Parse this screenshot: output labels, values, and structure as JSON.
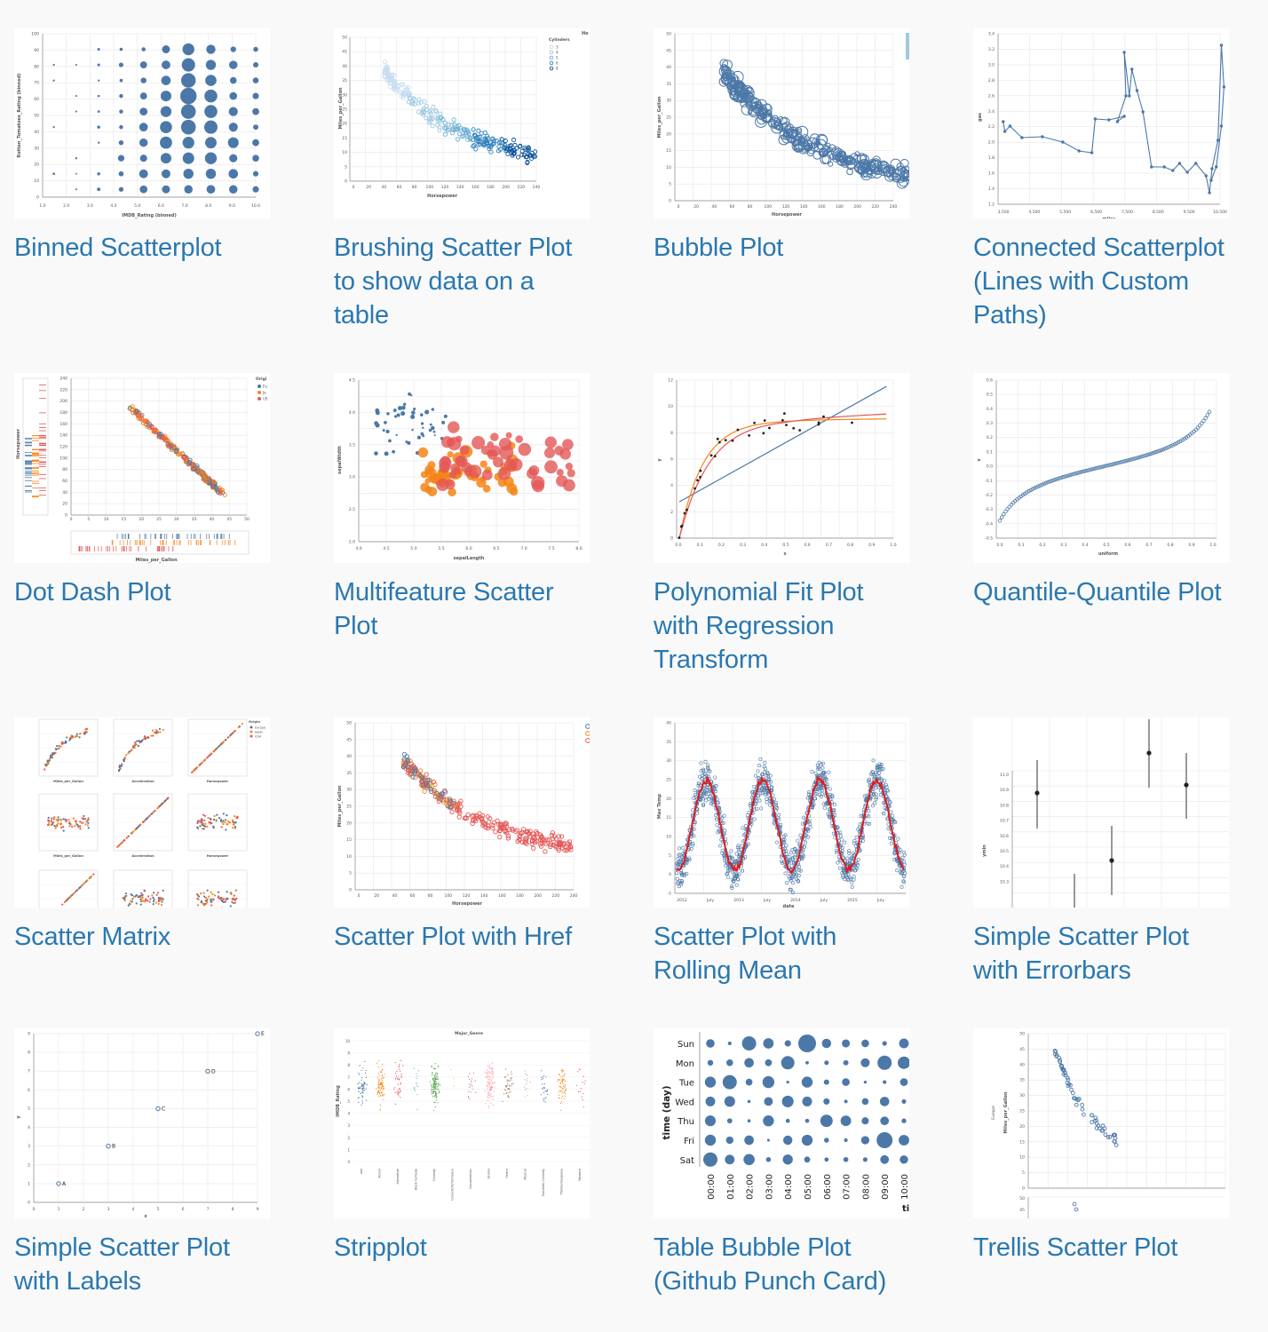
{
  "gallery": {
    "accent_color": "#2a78b0",
    "items": [
      {
        "title": "Binned Scatterplot",
        "thumbnail": "binned-scatterplot",
        "ylabel": "Rotten_Tomatoes_Rating (binned)",
        "xlabel": "IMDB_Rating (binned)"
      },
      {
        "title": "Brushing Scatter Plot to show data on a table",
        "thumbnail": "brushing-scatter",
        "ylabel": "Miles_per_Gallon",
        "xlabel": "Horsepower",
        "legend_title": "Cylinders",
        "legend_items": [
          "3",
          "4",
          "5",
          "6",
          "8"
        ],
        "corner_text": "Ho"
      },
      {
        "title": "Bubble Plot",
        "thumbnail": "bubble-plot",
        "ylabel": "Miles_per_Gallon",
        "xlabel": "Horsepower"
      },
      {
        "title": "Connected Scatterplot (Lines with Custom Paths)",
        "thumbnail": "connected-scatterplot",
        "ylabel": "gas",
        "xlabel": "miles"
      },
      {
        "title": "Dot Dash Plot",
        "thumbnail": "dot-dash-plot",
        "ylabel": "Horsepower",
        "xlabel": "Miles_per_Gallon",
        "legend_title": "Origi",
        "legend_items": [
          "Eu",
          "Ja",
          "US"
        ]
      },
      {
        "title": "Multifeature Scatter Plot",
        "thumbnail": "multifeature-scatter",
        "ylabel": "sepalWidth",
        "xlabel": "sepalLength"
      },
      {
        "title": "Polynomial Fit Plot with Regression Transform",
        "thumbnail": "polynomial-fit",
        "ylabel": "y",
        "xlabel": "x"
      },
      {
        "title": "Quantile-Quantile Plot",
        "thumbnail": "quantile-quantile",
        "ylabel": "v",
        "xlabel": "uniform"
      },
      {
        "title": "Scatter Matrix",
        "thumbnail": "scatter-matrix",
        "legend_title": "Origin",
        "legend_items": [
          "Europe",
          "Japan",
          "USA"
        ],
        "panel_labels": [
          "Miles_per_Gallon",
          "Acceleration",
          "Horsepower"
        ]
      },
      {
        "title": "Scatter Plot with Href",
        "thumbnail": "scatter-href",
        "ylabel": "Miles_per_Gallon",
        "xlabel": "Horsepower"
      },
      {
        "title": "Scatter Plot with Rolling Mean",
        "thumbnail": "rolling-mean",
        "ylabel": "Max Temp",
        "xlabel": "date",
        "xticks": [
          "2012",
          "July",
          "2013",
          "July",
          "2014",
          "July",
          "2015",
          "July"
        ]
      },
      {
        "title": "Simple Scatter Plot with Errorbars",
        "thumbnail": "errorbars",
        "ylabel": "ymin"
      },
      {
        "title": "Simple Scatter Plot with Labels",
        "thumbnail": "scatter-labels",
        "ylabel": "y",
        "xlabel": "x",
        "point_labels": [
          "A",
          "B",
          "C",
          "D",
          "E"
        ]
      },
      {
        "title": "Stripplot",
        "thumbnail": "stripplot",
        "chart_title": "Major_Genre",
        "ylabel": "IMDB_Rating",
        "genres": [
          "null",
          "Action",
          "Adventure",
          "Black Comedy",
          "Comedy",
          "Concert/Performance",
          "Documentary",
          "Drama",
          "Horror",
          "Musical",
          "Romantic Comedy",
          "Thriller/Suspense",
          "Western"
        ]
      },
      {
        "title": "Table Bubble Plot (Github Punch Card)",
        "thumbnail": "punch-card",
        "ylabel": "time (day)",
        "days": [
          "Sun",
          "Mon",
          "Tue",
          "Wed",
          "Thu",
          "Fri",
          "Sat"
        ],
        "hours": [
          "00:00",
          "01:00",
          "02:00",
          "03:00",
          "04:00",
          "05:00",
          "06:00",
          "07:00",
          "08:00",
          "09:00",
          "10:00"
        ],
        "xlabel_fragment": "ti"
      },
      {
        "title": "Trellis Scatter Plot",
        "thumbnail": "trellis-scatter",
        "ylabel": "Miles_per_Gallon",
        "facet_label": "Europe"
      }
    ]
  }
}
